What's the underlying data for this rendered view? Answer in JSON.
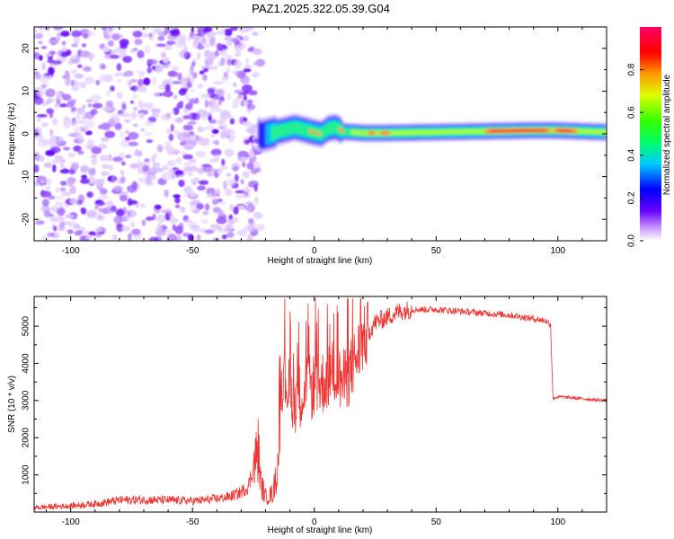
{
  "title": "PAZ1.2025.322.05.39.G04",
  "chart_data": [
    {
      "type": "heatmap",
      "xlabel": "Height of straight line (km)",
      "ylabel": "Frequency (Hz)",
      "xlim": [
        -115,
        120
      ],
      "ylim": [
        -25,
        25
      ],
      "xticks": [
        -100,
        -50,
        0,
        50,
        100
      ],
      "yticks": [
        -20,
        -10,
        0,
        10,
        20
      ],
      "colorbar": {
        "label": "Normalized spectral amplitude",
        "range": [
          0,
          1
        ],
        "ticks": [
          "0.0",
          "0.2",
          "0.4",
          "0.6",
          "0.8"
        ],
        "tick_values": [
          0,
          0.2,
          0.4,
          0.6,
          0.8
        ]
      },
      "noise_region_x": [
        -115,
        -22
      ],
      "signal_centerline": [
        {
          "x": -22,
          "y": -0.5
        },
        {
          "x": -15,
          "y": 0.5
        },
        {
          "x": -8,
          "y": 1.5
        },
        {
          "x": -3,
          "y": 0.8
        },
        {
          "x": 0,
          "y": 0.3
        },
        {
          "x": 3,
          "y": 0
        },
        {
          "x": 6,
          "y": 1.3
        },
        {
          "x": 9,
          "y": 1.5
        },
        {
          "x": 12,
          "y": 0.5
        },
        {
          "x": 20,
          "y": 0.2
        },
        {
          "x": 30,
          "y": 0.2
        },
        {
          "x": 60,
          "y": 0.5
        },
        {
          "x": 90,
          "y": 0.8
        },
        {
          "x": 98,
          "y": 0.8
        },
        {
          "x": 104,
          "y": 0.7
        },
        {
          "x": 120,
          "y": 0.4
        }
      ],
      "peak_amplitude_regions": [
        {
          "x_start": 70,
          "x_end": 97,
          "amplitude": 1.0
        },
        {
          "x_start": 98,
          "x_end": 108,
          "amplitude": 0.95
        }
      ]
    },
    {
      "type": "line",
      "xlabel": "Height of straight line (km)",
      "ylabel": "SNR (10 * v/v)",
      "xlim": [
        -115,
        120
      ],
      "ylim": [
        0,
        5800
      ],
      "xticks": [
        -100,
        -50,
        0,
        50,
        100
      ],
      "yticks": [
        1000,
        2000,
        3000,
        4000,
        5000
      ],
      "color": "#ee3333",
      "series": [
        {
          "name": "SNR",
          "x": [
            -115,
            -100,
            -90,
            -80,
            -70,
            -60,
            -50,
            -45,
            -40,
            -35,
            -30,
            -27,
            -25,
            -23,
            -22,
            -20,
            -17,
            -15,
            -14,
            -12,
            -10,
            -8,
            -5,
            -3,
            0,
            3,
            5,
            8,
            10,
            12,
            15,
            20,
            25,
            30,
            35,
            40,
            50,
            60,
            70,
            80,
            90,
            95,
            97,
            98,
            99,
            100,
            105,
            110,
            115,
            120
          ],
          "values": [
            120,
            170,
            220,
            320,
            330,
            320,
            300,
            320,
            360,
            410,
            530,
            700,
            1200,
            1700,
            800,
            400,
            500,
            1200,
            3600,
            3600,
            3200,
            3000,
            3200,
            3300,
            3400,
            3450,
            3600,
            3800,
            3600,
            3500,
            3800,
            4600,
            5100,
            5250,
            5400,
            5450,
            5450,
            5400,
            5350,
            5300,
            5200,
            5150,
            5050,
            3050,
            3080,
            3100,
            3080,
            3050,
            3020,
            3000
          ]
        }
      ]
    }
  ]
}
